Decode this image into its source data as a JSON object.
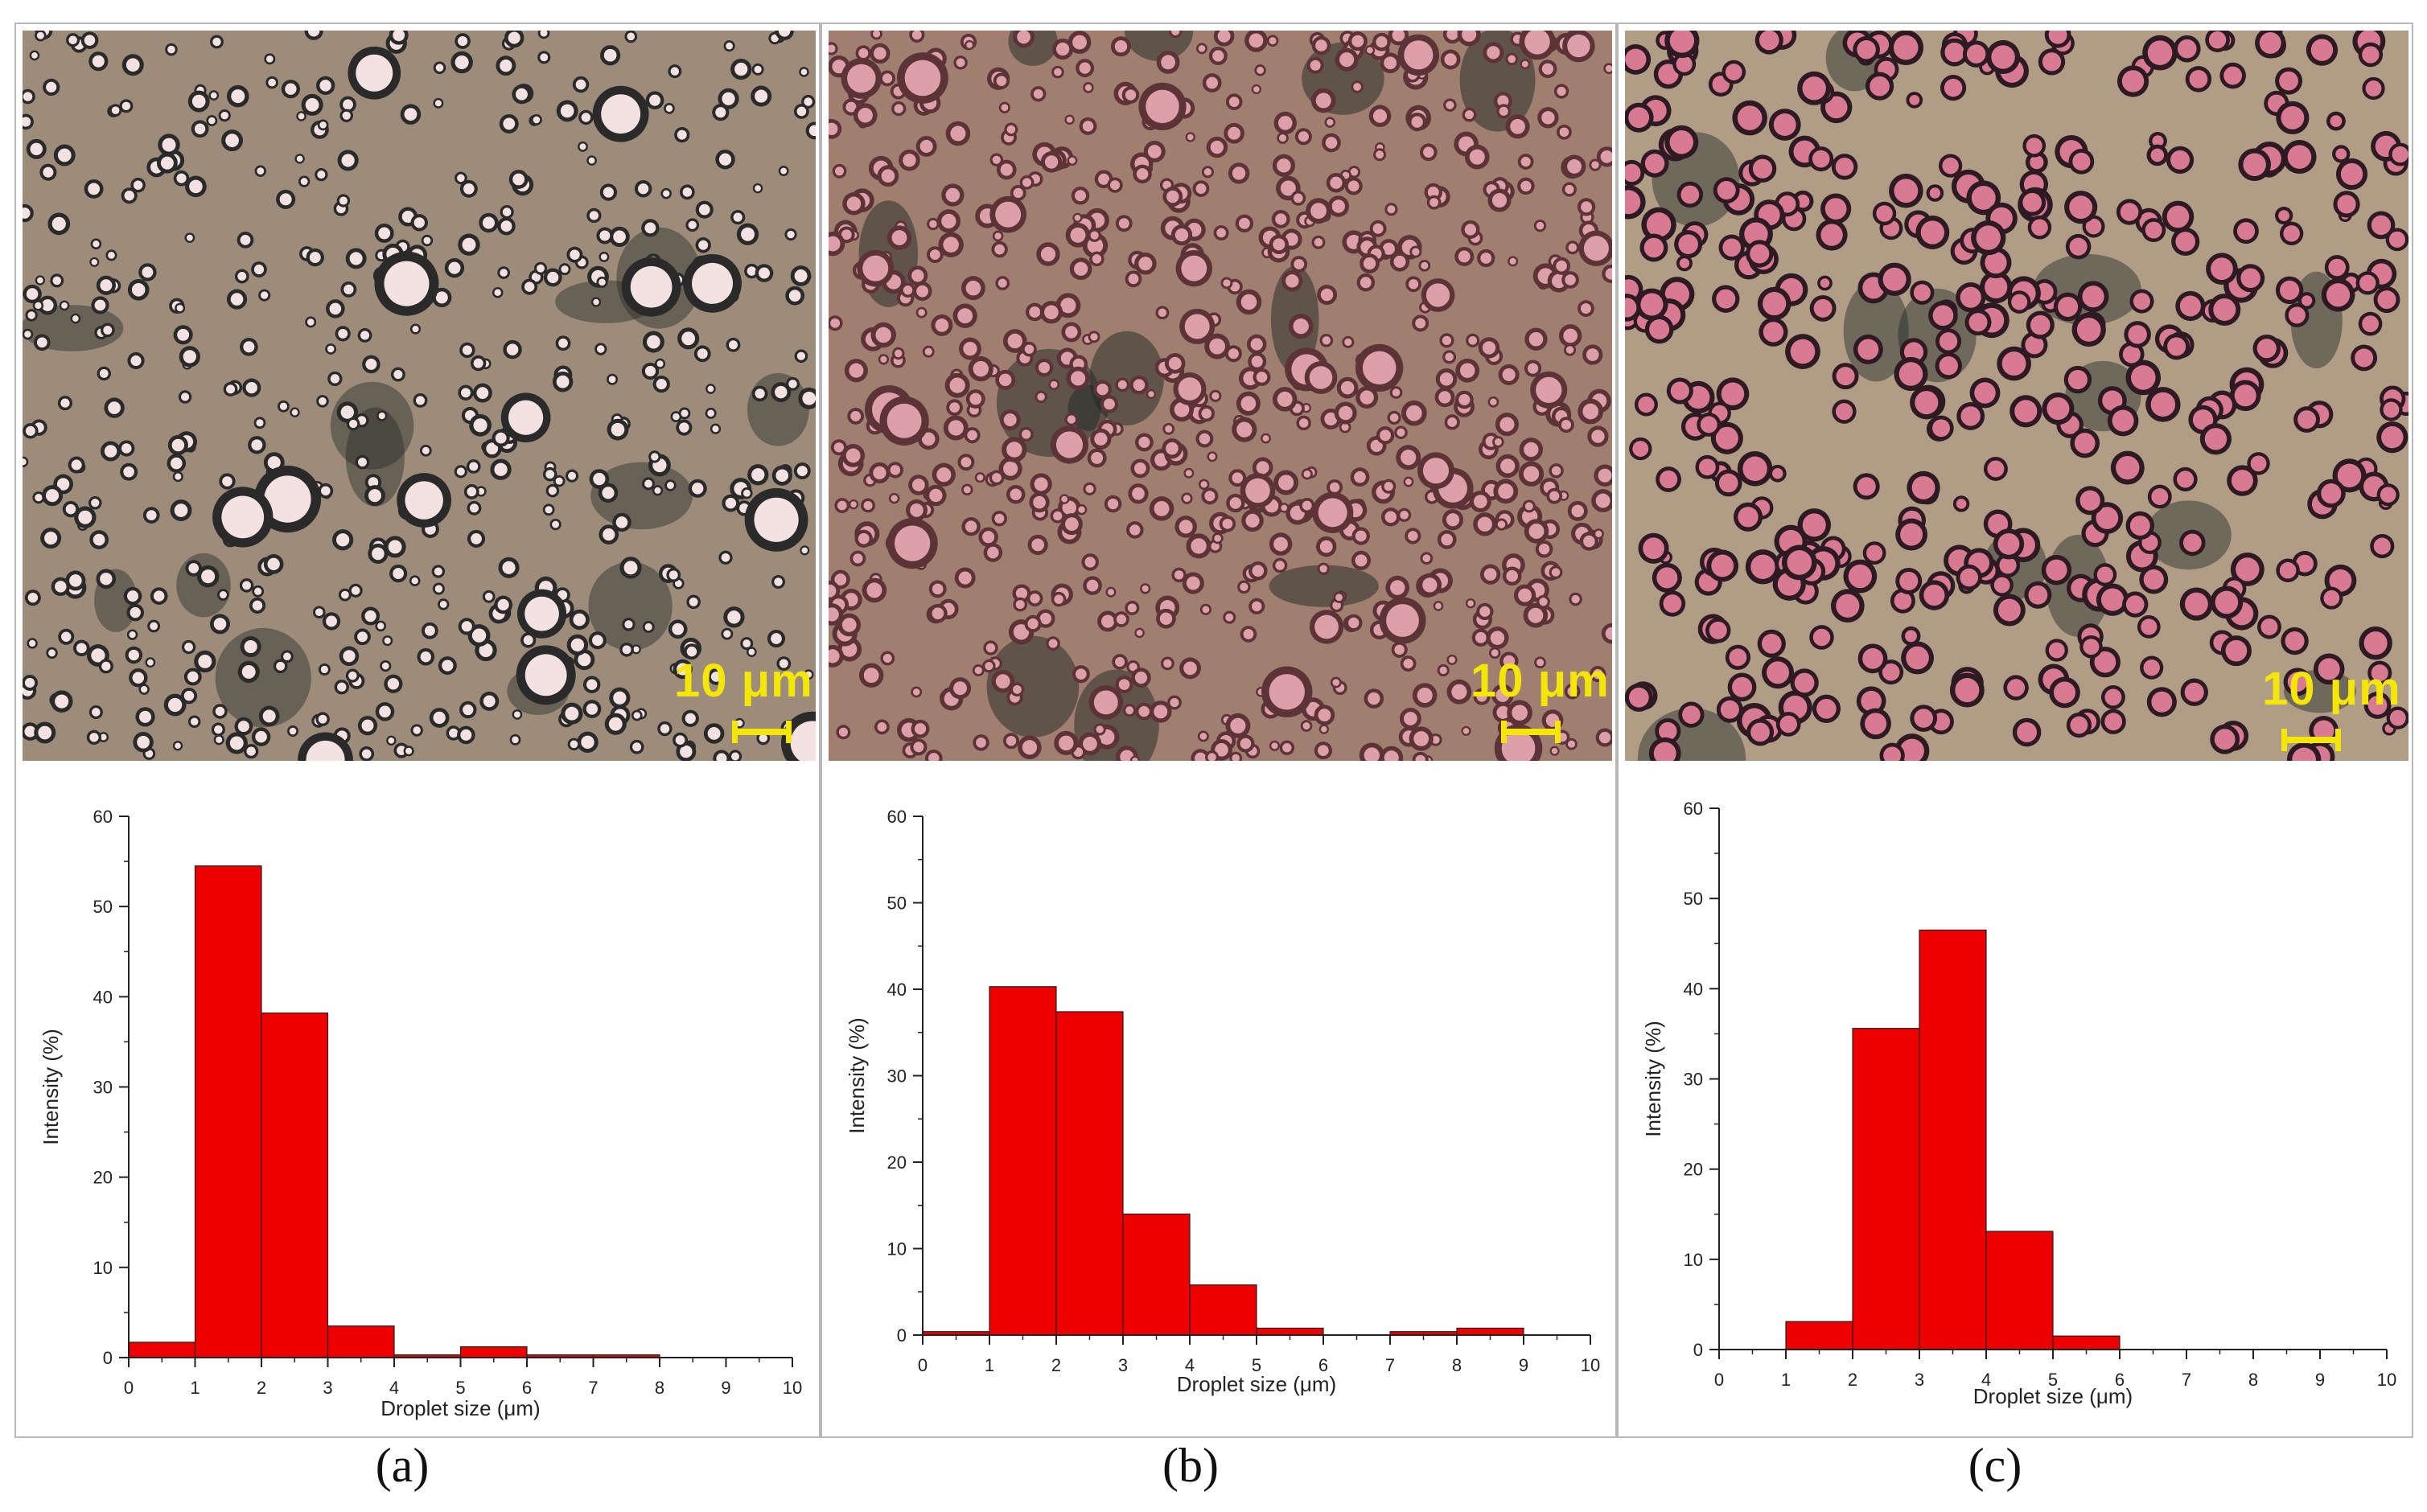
{
  "scale_bar_label": "10 μm",
  "panels": [
    {
      "label": "(a)"
    },
    {
      "label": "(b)"
    },
    {
      "label": "(c)"
    }
  ],
  "chart_data": [
    {
      "type": "bar",
      "xlabel": "Droplet size (μm)",
      "ylabel": "Intensity (%)",
      "xlim": [
        0,
        10
      ],
      "ylim": [
        0,
        60
      ],
      "xticks": [
        "0",
        "1",
        "2",
        "3",
        "4",
        "5",
        "6",
        "7",
        "8",
        "9",
        "10"
      ],
      "yticks": [
        "0",
        "10",
        "20",
        "30",
        "40",
        "50",
        "60"
      ],
      "bins": [
        [
          0,
          1
        ],
        [
          1,
          2
        ],
        [
          2,
          3
        ],
        [
          3,
          4
        ],
        [
          4,
          5
        ],
        [
          5,
          6
        ],
        [
          6,
          7
        ],
        [
          7,
          8
        ]
      ],
      "values": [
        1.7,
        54.5,
        38.2,
        3.5,
        0.3,
        1.2,
        0.3,
        0.3
      ],
      "bar_color": "#ee0000"
    },
    {
      "type": "bar",
      "xlabel": "Droplet size (μm)",
      "ylabel": "Intensity (%)",
      "xlim": [
        0,
        10
      ],
      "ylim": [
        0,
        60
      ],
      "xticks": [
        "0",
        "1",
        "2",
        "3",
        "4",
        "5",
        "6",
        "7",
        "8",
        "9",
        "10"
      ],
      "yticks": [
        "0",
        "10",
        "20",
        "30",
        "40",
        "50",
        "60"
      ],
      "bins": [
        [
          0,
          1
        ],
        [
          1,
          2
        ],
        [
          2,
          3
        ],
        [
          3,
          4
        ],
        [
          4,
          5
        ],
        [
          5,
          6
        ],
        [
          7,
          8
        ],
        [
          8,
          9
        ]
      ],
      "values": [
        0.4,
        40.3,
        37.4,
        14.0,
        5.8,
        0.8,
        0.4,
        0.8
      ],
      "bar_color": "#ee0000"
    },
    {
      "type": "bar",
      "xlabel": "Droplet size (μm)",
      "ylabel": "Intensity (%)",
      "xlim": [
        0,
        10
      ],
      "ylim": [
        0,
        60
      ],
      "xticks": [
        "0",
        "1",
        "2",
        "3",
        "4",
        "5",
        "6",
        "7",
        "8",
        "9",
        "10"
      ],
      "yticks": [
        "0",
        "10",
        "20",
        "30",
        "40",
        "50",
        "60"
      ],
      "bins": [
        [
          1,
          2
        ],
        [
          2,
          3
        ],
        [
          3,
          4
        ],
        [
          4,
          5
        ],
        [
          5,
          6
        ]
      ],
      "values": [
        3.1,
        35.6,
        46.5,
        13.1,
        1.5
      ],
      "bar_color": "#ee0000"
    }
  ]
}
